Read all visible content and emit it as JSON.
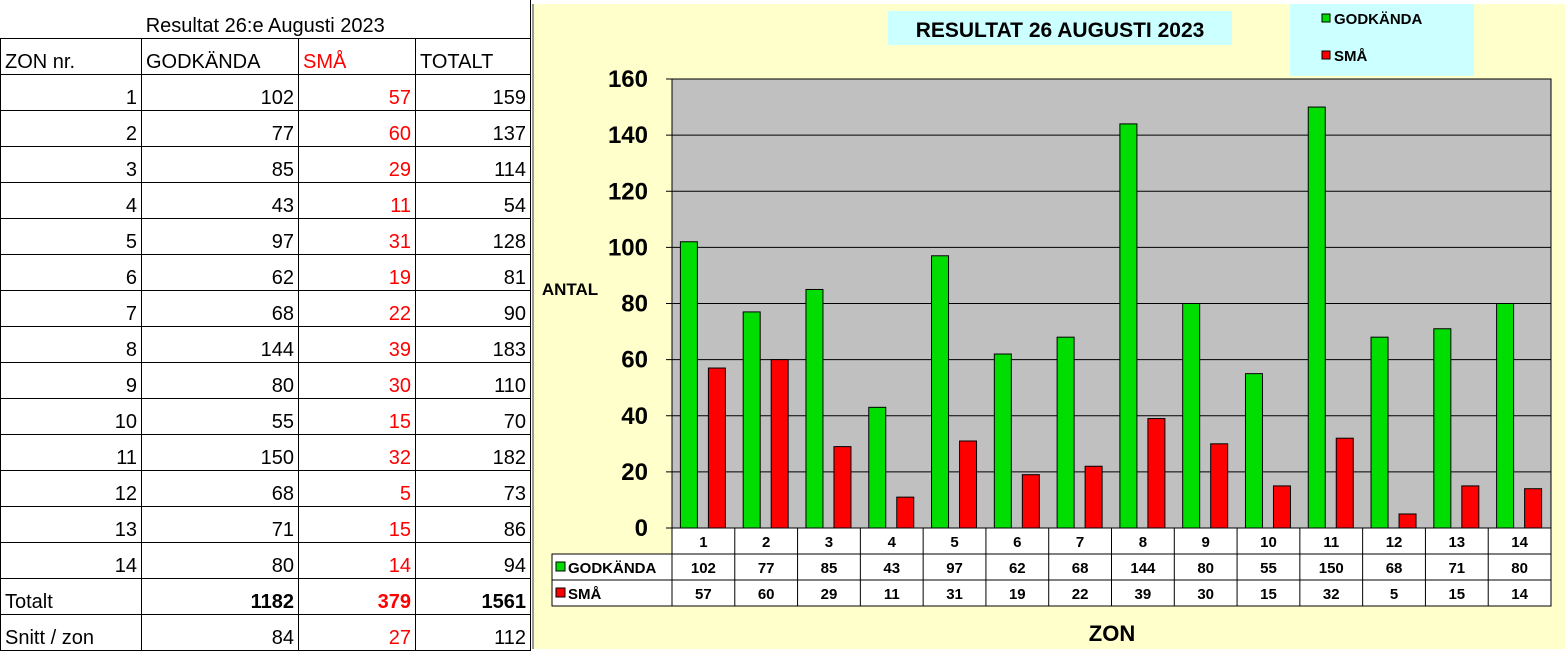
{
  "table": {
    "title": "Resultat 26:e Augusti 2023",
    "headers": [
      "ZON nr.",
      "GODKÄNDA",
      "SMÅ",
      "TOTALT"
    ],
    "rows": [
      {
        "zon": "1",
        "godkanda": "102",
        "sma": "57",
        "totalt": "159"
      },
      {
        "zon": "2",
        "godkanda": "77",
        "sma": "60",
        "totalt": "137"
      },
      {
        "zon": "3",
        "godkanda": "85",
        "sma": "29",
        "totalt": "114"
      },
      {
        "zon": "4",
        "godkanda": "43",
        "sma": "11",
        "totalt": "54"
      },
      {
        "zon": "5",
        "godkanda": "97",
        "sma": "31",
        "totalt": "128"
      },
      {
        "zon": "6",
        "godkanda": "62",
        "sma": "19",
        "totalt": "81"
      },
      {
        "zon": "7",
        "godkanda": "68",
        "sma": "22",
        "totalt": "90"
      },
      {
        "zon": "8",
        "godkanda": "144",
        "sma": "39",
        "totalt": "183"
      },
      {
        "zon": "9",
        "godkanda": "80",
        "sma": "30",
        "totalt": "110"
      },
      {
        "zon": "10",
        "godkanda": "55",
        "sma": "15",
        "totalt": "70"
      },
      {
        "zon": "11",
        "godkanda": "150",
        "sma": "32",
        "totalt": "182"
      },
      {
        "zon": "12",
        "godkanda": "68",
        "sma": "5",
        "totalt": "73"
      },
      {
        "zon": "13",
        "godkanda": "71",
        "sma": "15",
        "totalt": "86"
      },
      {
        "zon": "14",
        "godkanda": "80",
        "sma": "14",
        "totalt": "94"
      }
    ],
    "total": {
      "label": "Totalt",
      "godkanda": "1182",
      "sma": "379",
      "totalt": "1561"
    },
    "average": {
      "label": "Snitt / zon",
      "godkanda": "84",
      "sma": "27",
      "totalt": "112"
    }
  },
  "chart_data": {
    "type": "bar",
    "title": "RESULTAT 26 AUGUSTI 2023",
    "xlabel": "ZON",
    "ylabel": "ANTAL",
    "ylim": [
      0,
      160
    ],
    "yticks": [
      0,
      20,
      40,
      60,
      80,
      100,
      120,
      140,
      160
    ],
    "categories": [
      "1",
      "2",
      "3",
      "4",
      "5",
      "6",
      "7",
      "8",
      "9",
      "10",
      "11",
      "12",
      "13",
      "14"
    ],
    "series": [
      {
        "name": "GODKÄNDA",
        "color": "#00dd00",
        "values": [
          102,
          77,
          85,
          43,
          97,
          62,
          68,
          144,
          80,
          55,
          150,
          68,
          71,
          80
        ]
      },
      {
        "name": "SMÅ",
        "color": "#ff0000",
        "values": [
          57,
          60,
          29,
          11,
          31,
          19,
          22,
          39,
          30,
          15,
          32,
          5,
          15,
          14
        ]
      }
    ],
    "grid": true,
    "legend_position": "top-right",
    "data_table": true,
    "colors": {
      "plot_background": "#c0c0c0",
      "panel_background": "#ffffcc",
      "title_background": "#ccffff",
      "legend_background": "#ccffff"
    }
  }
}
